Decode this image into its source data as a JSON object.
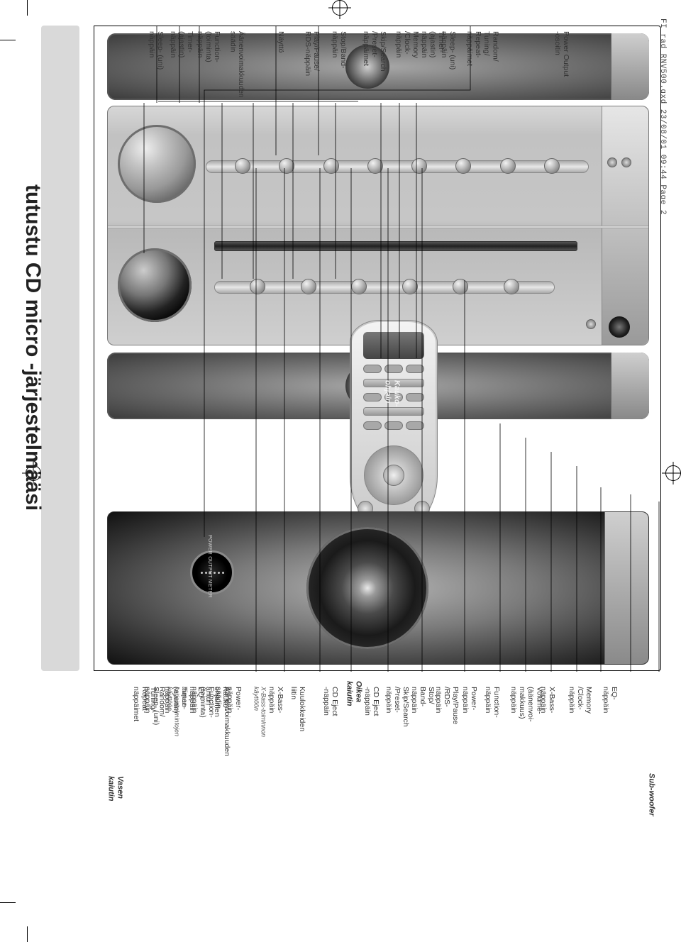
{
  "doc_header": "FI rad RNV500.qxd  23/08/01  09:44  Page 2",
  "title": "tutustu CD micro -järjestelmääsi",
  "legends": {
    "left_speaker": "Vasen\nkaiutin",
    "right_speaker": "Oikea\nkaiutin",
    "remote": "Kauko-\nohjain",
    "subwoofer": "Sub-woofer"
  },
  "labels_top": {
    "volume": "Äänenvoimakkuuden\nsäädin",
    "sleep": "Sleep- (uni)\nnäppäin",
    "timer": "Timer-\n(ajastin)\nnäppäin",
    "function": "Function-\n(toiminta)\nnäppäin",
    "display": "Näyttö",
    "play_pause_rds": "Play/Pause/\nRDS-näppäin",
    "stop_band": "Stop/Band-\nnäppäin",
    "skip_search": "Skip/Search\n/Preset-\nnäppäimet",
    "memory_clock": "Memory\n/Clock-\nnäppäin",
    "timer2": "Timer-\n(ajastin)\nnäppäin",
    "sleep2": "Sleep- (uni)\nnäppäin",
    "random_repeat": "Random/\nTuning/\nRepeat-\nnäppäimet",
    "power_output": "Power Output\n-osoitin"
  },
  "labels_bottom": {
    "random_repeat": "Random/\nTuning/\nRepeat-\nnäppäimet",
    "eq": "EQ-\nnäppäin",
    "eq_note": "taajuus-\nkorjaintoimintojen\nkäyttöön",
    "remote_sensor": "Kauko-\nohjaimen\nanturi",
    "power": "Power-\nnäppäin",
    "xbass": "X-Bass-\nnäppäin",
    "xbass_note": "X-Bass-toiminnon\nkäyttöön",
    "headphones": "Kuulokkeiden\nliitin",
    "cd_eject": "CD Eject\n-näppäin",
    "r_cd_eject": "CD Eject\n-näppäin",
    "r_skip": "Skip/Search\n/Preset-\nnäppäin",
    "r_stop": "Stop/\nBand-\nnäppäin",
    "r_play": "Play/Pause\n/RDS-\nnäppäin",
    "r_power": "Power-\nnäppäin",
    "r_function": "Function-\nnäppäin",
    "r_volume": "Volume-\n(äänenvoi-\nmakkuus)\nnäppäin",
    "r_xbass": "X-Bass-\nnäppäin",
    "r_memory": "Memory\n/Clock-\nnäppäin",
    "r_eq": "EQ-\nnäppäin"
  },
  "meter_label": "POWER OUTPUT METER",
  "colors": {
    "page_bg": "#ffffff",
    "title_bar": "#d9d9d9",
    "frame_border": "#000000",
    "text": "#333333",
    "metal_light": "#d7d7d7",
    "metal_dark": "#8a8a8a",
    "speaker_dark": "#3a3a3a"
  }
}
